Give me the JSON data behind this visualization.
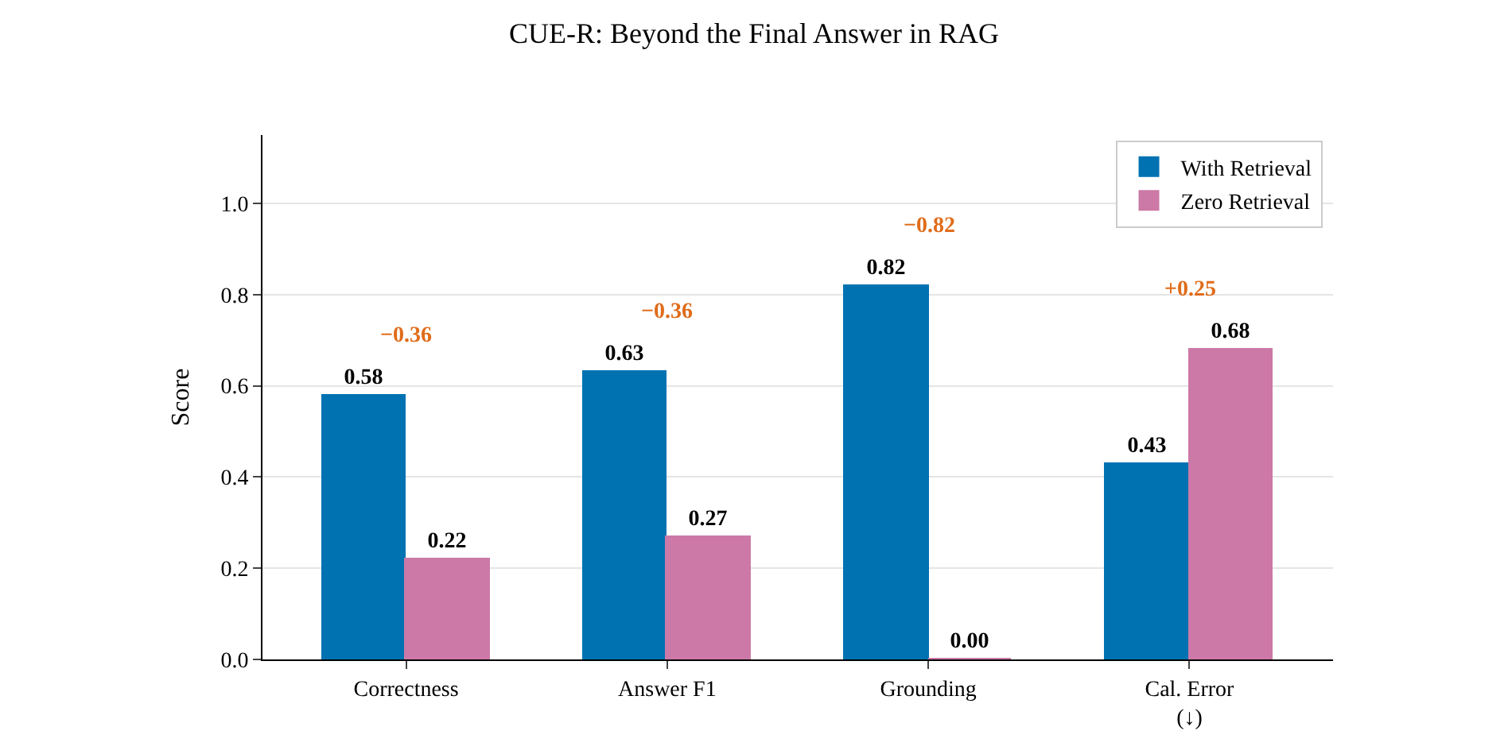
{
  "chart_data": {
    "type": "bar",
    "title": "CUE-R: Beyond the Final Answer in RAG",
    "ylabel": "Score",
    "categories": [
      "Correctness",
      "Answer F1",
      "Grounding",
      "Cal. Error\n(↓)"
    ],
    "series": [
      {
        "name": "With Retrieval",
        "color": "#0072b2",
        "values": [
          0.58,
          0.63,
          0.82,
          0.43
        ]
      },
      {
        "name": "Zero Retrieval",
        "color": "#cc79a7",
        "values": [
          0.22,
          0.27,
          0.0,
          0.68
        ],
        "value_labels": [
          "0.22",
          "0.27",
          "0.00",
          "0.68"
        ]
      }
    ],
    "ylim": [
      0,
      1.15
    ],
    "yticks": [
      {
        "value": 0,
        "label": "0.0"
      },
      {
        "value": 0.2,
        "label": "0.2"
      },
      {
        "value": 0.4,
        "label": "0.4"
      },
      {
        "value": 0.6,
        "label": "0.6"
      },
      {
        "value": 0.8,
        "label": "0.8"
      },
      {
        "value": 1.0,
        "label": "1.0"
      }
    ],
    "grid": "y",
    "legend": "top right",
    "data_labels": true,
    "annotations": [
      "−0.36",
      "−0.36",
      "−0.82",
      "+0.25"
    ]
  }
}
